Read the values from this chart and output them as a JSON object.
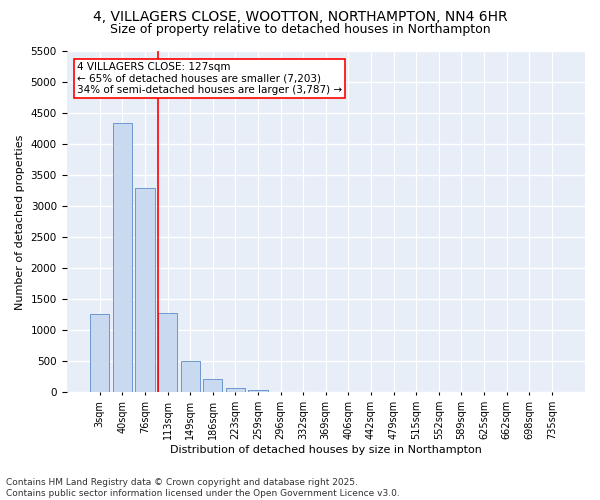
{
  "title": "4, VILLAGERS CLOSE, WOOTTON, NORTHAMPTON, NN4 6HR",
  "subtitle": "Size of property relative to detached houses in Northampton",
  "xlabel": "Distribution of detached houses by size in Northampton",
  "ylabel": "Number of detached properties",
  "categories": [
    "3sqm",
    "40sqm",
    "76sqm",
    "113sqm",
    "149sqm",
    "186sqm",
    "223sqm",
    "259sqm",
    "296sqm",
    "332sqm",
    "369sqm",
    "406sqm",
    "442sqm",
    "479sqm",
    "515sqm",
    "552sqm",
    "589sqm",
    "625sqm",
    "662sqm",
    "698sqm",
    "735sqm"
  ],
  "values": [
    1260,
    4350,
    3300,
    1280,
    500,
    210,
    75,
    40,
    0,
    0,
    0,
    0,
    0,
    0,
    0,
    0,
    0,
    0,
    0,
    0,
    0
  ],
  "bar_color": "#c9d9f0",
  "bar_edge_color": "#5b8cc8",
  "vline_color": "red",
  "vline_xindex": 3,
  "annotation_line1": "4 VILLAGERS CLOSE: 127sqm",
  "annotation_line2": "← 65% of detached houses are smaller (7,203)",
  "annotation_line3": "34% of semi-detached houses are larger (3,787) →",
  "annotation_box_color": "white",
  "annotation_box_edgecolor": "red",
  "ylim": [
    0,
    5500
  ],
  "yticks": [
    0,
    500,
    1000,
    1500,
    2000,
    2500,
    3000,
    3500,
    4000,
    4500,
    5000,
    5500
  ],
  "background_color": "#e8eef8",
  "grid_color": "white",
  "footer_line1": "Contains HM Land Registry data © Crown copyright and database right 2025.",
  "footer_line2": "Contains public sector information licensed under the Open Government Licence v3.0.",
  "title_fontsize": 10,
  "subtitle_fontsize": 9,
  "annotation_fontsize": 7.5,
  "footer_fontsize": 6.5,
  "ylabel_fontsize": 8,
  "xlabel_fontsize": 8
}
